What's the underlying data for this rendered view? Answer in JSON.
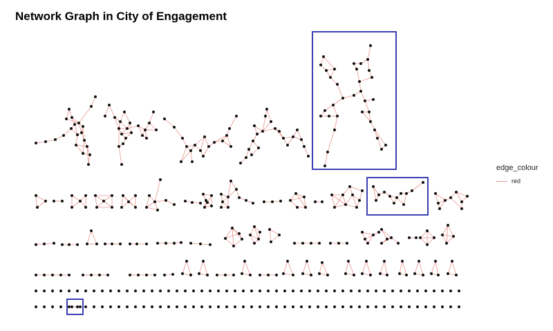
{
  "title": "Network Graph in City of Engagement",
  "legend": {
    "title": "edge_colour",
    "entries": [
      {
        "label": "red",
        "color": "#e8938b"
      }
    ]
  },
  "colors": {
    "edge": "#e8938b",
    "node": "#111111",
    "highlight": "#3b3fb3"
  },
  "highlight_boxes": [
    {
      "name": "highlight-box-large-component"
    },
    {
      "name": "highlight-box-chain-component"
    },
    {
      "name": "highlight-box-isolated-pair"
    }
  ]
}
